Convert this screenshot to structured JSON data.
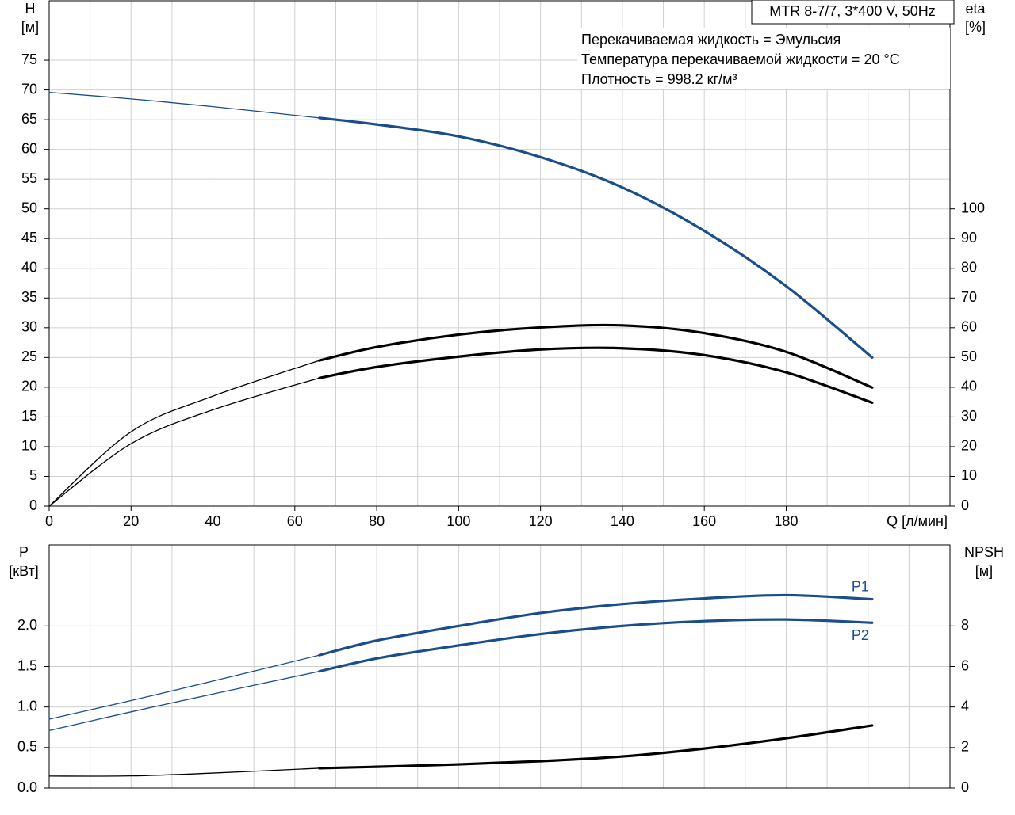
{
  "chart_data": [
    {
      "type": "line",
      "title": "MTR 8-7/7, 3*400 V, 50Hz",
      "annotations": [
        "Перекачиваемая жидкость = Эмульсия",
        "Температура перекачиваемой жидкости = 20 °C",
        "Плотность = 998.2 кг/м³"
      ],
      "xlabel": "Q [л/мин]",
      "ylabel": "H",
      "yunit": "[м]",
      "y2label": "eta",
      "y2unit": "[%]",
      "xlim": [
        0,
        220
      ],
      "xticks": [
        0,
        20,
        40,
        60,
        80,
        100,
        120,
        140,
        160,
        180
      ],
      "ylim": [
        0,
        85
      ],
      "yticks": [
        0,
        5,
        10,
        15,
        20,
        25,
        30,
        35,
        40,
        45,
        50,
        55,
        60,
        65,
        70,
        75
      ],
      "y2lim": [
        0,
        170
      ],
      "y2ticks": [
        0,
        10,
        20,
        30,
        40,
        50,
        60,
        70,
        80,
        90,
        100
      ],
      "grid": true,
      "operating_range": [
        66,
        201
      ],
      "x": [
        0,
        20,
        40,
        66,
        80,
        100,
        120,
        140,
        160,
        180,
        201
      ],
      "series": [
        {
          "color": "#1a4d8c",
          "axis": "y",
          "values": [
            69.6,
            68.5,
            67.2,
            65.3,
            64.2,
            62.2,
            58.7,
            53.6,
            46.3,
            37,
            25
          ]
        },
        {
          "color": "#000000",
          "axis": "y2",
          "values": [
            0,
            25,
            37,
            49,
            53.5,
            57.7,
            60.1,
            60.8,
            58.2,
            51.9,
            39.9
          ]
        },
        {
          "color": "#000000",
          "axis": "y2",
          "values": [
            0,
            21,
            32.4,
            43.1,
            46.8,
            50.3,
            52.7,
            53.1,
            50.8,
            45,
            34.8
          ]
        }
      ]
    },
    {
      "type": "line",
      "ylabel": "P",
      "yunit": "[кВт]",
      "y2label": "NPSH",
      "y2unit": "[м]",
      "xlim": [
        0,
        220
      ],
      "ylim": [
        0,
        3
      ],
      "yticks": [
        {
          "value": 0,
          "label": "0.0"
        },
        0.5,
        {
          "value": 1,
          "label": "1.0"
        },
        1.5,
        {
          "value": 2,
          "label": "2.0"
        }
      ],
      "y2lim": [
        0,
        12
      ],
      "y2ticks": [
        0,
        2,
        4,
        6,
        8
      ],
      "grid": true,
      "operating_range": [
        66,
        201
      ],
      "x": [
        0,
        20,
        40,
        66,
        80,
        100,
        120,
        140,
        160,
        180,
        201
      ],
      "series": [
        {
          "name": "P1",
          "color": "#1a4d8c",
          "axis": "y",
          "values": [
            0.85,
            1.08,
            1.32,
            1.64,
            1.82,
            2.0,
            2.16,
            2.27,
            2.34,
            2.38,
            2.33
          ]
        },
        {
          "name": "P2",
          "color": "#1a4d8c",
          "axis": "y",
          "values": [
            0.71,
            0.94,
            1.16,
            1.44,
            1.6,
            1.76,
            1.9,
            2.0,
            2.06,
            2.08,
            2.04
          ]
        },
        {
          "color": "#000000",
          "axis": "y2",
          "values": [
            0.59,
            0.6,
            0.74,
            0.98,
            1.05,
            1.17,
            1.33,
            1.56,
            1.95,
            2.46,
            3.09
          ]
        }
      ]
    }
  ]
}
